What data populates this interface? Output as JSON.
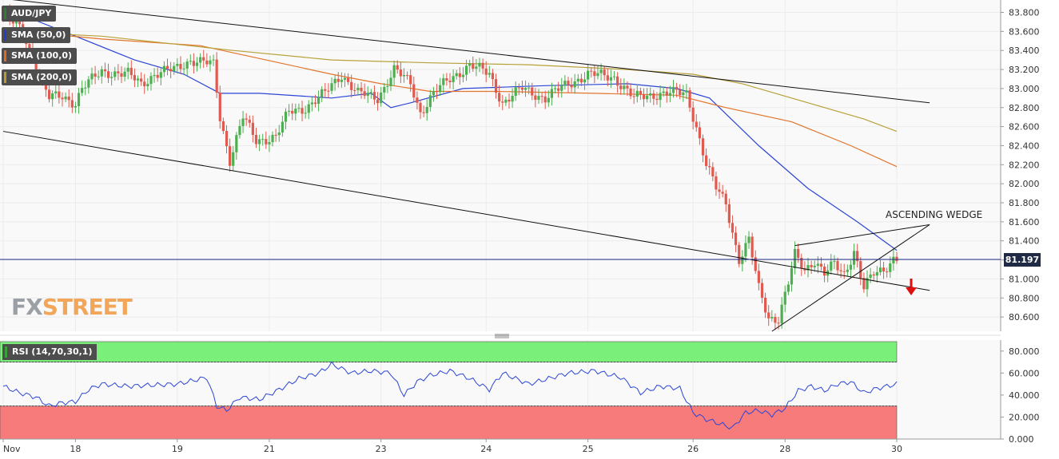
{
  "chart_data": {
    "type": "candlestick",
    "symbol": "AUD/JPY",
    "price_axis": {
      "min": 80.45,
      "max": 83.93,
      "ticks": [
        "83.800",
        "83.600",
        "83.400",
        "83.200",
        "83.000",
        "82.800",
        "82.600",
        "82.400",
        "82.200",
        "82.000",
        "81.800",
        "81.600",
        "81.400",
        "81.200",
        "81.000",
        "80.800",
        "80.600"
      ]
    },
    "current_price": "81.197",
    "x_ticks": [
      {
        "label": "Nov",
        "i": 0
      },
      {
        "label": "18",
        "i": 22
      },
      {
        "label": "19",
        "i": 53
      },
      {
        "label": "21",
        "i": 81
      },
      {
        "label": "23",
        "i": 115
      },
      {
        "label": "24",
        "i": 147
      },
      {
        "label": "25",
        "i": 178
      },
      {
        "label": "26",
        "i": 210
      },
      {
        "label": "28",
        "i": 238
      },
      {
        "label": "30",
        "i": 272
      }
    ],
    "legend": [
      {
        "label": "AUD/JPY",
        "color": "#2e7d32"
      },
      {
        "label": "SMA (50,0)",
        "color": "#1e3fcf"
      },
      {
        "label": "SMA (100,0)",
        "color": "#e06c1f"
      },
      {
        "label": "SMA (200,0)",
        "color": "#b59a2e"
      }
    ],
    "annotation": "ASCENDING WEDGE",
    "watermark": {
      "fx": "FX",
      "street": "STREET"
    },
    "colors": {
      "up": "#4caf50",
      "down": "#e05a4f",
      "sma50": "#2b45d6",
      "sma100": "#e2742b",
      "sma200": "#b8a13a",
      "trend": "#111111",
      "arrow": "#e01010"
    },
    "anchors": [
      {
        "i": 0,
        "p": 83.78
      },
      {
        "i": 6,
        "p": 83.6
      },
      {
        "i": 12,
        "p": 83.05
      },
      {
        "i": 14,
        "p": 82.9
      },
      {
        "i": 18,
        "p": 82.92
      },
      {
        "i": 22,
        "p": 82.85
      },
      {
        "i": 24,
        "p": 83.0
      },
      {
        "i": 30,
        "p": 83.18
      },
      {
        "i": 38,
        "p": 83.15
      },
      {
        "i": 42,
        "p": 83.05
      },
      {
        "i": 46,
        "p": 83.15
      },
      {
        "i": 52,
        "p": 83.2
      },
      {
        "i": 57,
        "p": 83.3
      },
      {
        "i": 64,
        "p": 83.25
      },
      {
        "i": 66,
        "p": 82.7
      },
      {
        "i": 69,
        "p": 82.25
      },
      {
        "i": 73,
        "p": 82.7
      },
      {
        "i": 77,
        "p": 82.45
      },
      {
        "i": 83,
        "p": 82.5
      },
      {
        "i": 87,
        "p": 82.75
      },
      {
        "i": 92,
        "p": 82.8
      },
      {
        "i": 98,
        "p": 82.95
      },
      {
        "i": 103,
        "p": 83.15
      },
      {
        "i": 108,
        "p": 82.95
      },
      {
        "i": 114,
        "p": 82.9
      },
      {
        "i": 119,
        "p": 83.2
      },
      {
        "i": 124,
        "p": 83.05
      },
      {
        "i": 127,
        "p": 82.75
      },
      {
        "i": 131,
        "p": 82.95
      },
      {
        "i": 136,
        "p": 83.1
      },
      {
        "i": 142,
        "p": 83.25
      },
      {
        "i": 148,
        "p": 83.15
      },
      {
        "i": 152,
        "p": 82.85
      },
      {
        "i": 158,
        "p": 83.0
      },
      {
        "i": 165,
        "p": 82.9
      },
      {
        "i": 172,
        "p": 83.05
      },
      {
        "i": 178,
        "p": 83.15
      },
      {
        "i": 186,
        "p": 83.12
      },
      {
        "i": 192,
        "p": 82.9
      },
      {
        "i": 200,
        "p": 82.95
      },
      {
        "i": 208,
        "p": 82.95
      },
      {
        "i": 211,
        "p": 82.6
      },
      {
        "i": 214,
        "p": 82.2
      },
      {
        "i": 217,
        "p": 81.95
      },
      {
        "i": 220,
        "p": 81.8
      },
      {
        "i": 224,
        "p": 81.2
      },
      {
        "i": 227,
        "p": 81.4
      },
      {
        "i": 230,
        "p": 80.9
      },
      {
        "i": 233,
        "p": 80.6
      },
      {
        "i": 236,
        "p": 80.58
      },
      {
        "i": 239,
        "p": 80.95
      },
      {
        "i": 241,
        "p": 81.25
      },
      {
        "i": 244,
        "p": 81.1
      },
      {
        "i": 247,
        "p": 81.2
      },
      {
        "i": 250,
        "p": 81.05
      },
      {
        "i": 253,
        "p": 81.15
      },
      {
        "i": 256,
        "p": 81.05
      },
      {
        "i": 259,
        "p": 81.3
      },
      {
        "i": 262,
        "p": 80.9
      },
      {
        "i": 265,
        "p": 81.05
      },
      {
        "i": 268,
        "p": 81.1
      },
      {
        "i": 271,
        "p": 81.22
      }
    ],
    "sma50": [
      [
        0,
        83.85
      ],
      [
        22,
        83.55
      ],
      [
        40,
        83.3
      ],
      [
        55,
        83.15
      ],
      [
        66,
        82.95
      ],
      [
        78,
        82.95
      ],
      [
        100,
        82.9
      ],
      [
        112,
        82.95
      ],
      [
        118,
        82.8
      ],
      [
        124,
        82.85
      ],
      [
        140,
        83.0
      ],
      [
        165,
        83.03
      ],
      [
        190,
        83.05
      ],
      [
        205,
        83.0
      ],
      [
        215,
        82.9
      ],
      [
        230,
        82.4
      ],
      [
        245,
        81.95
      ],
      [
        260,
        81.6
      ],
      [
        272,
        81.3
      ]
    ],
    "sma100": [
      [
        0,
        83.62
      ],
      [
        30,
        83.52
      ],
      [
        60,
        83.45
      ],
      [
        80,
        83.3
      ],
      [
        100,
        83.15
      ],
      [
        115,
        83.05
      ],
      [
        130,
        82.97
      ],
      [
        150,
        82.97
      ],
      [
        180,
        82.95
      ],
      [
        205,
        82.93
      ],
      [
        220,
        82.8
      ],
      [
        240,
        82.65
      ],
      [
        258,
        82.4
      ],
      [
        272,
        82.18
      ]
    ],
    "sma200": [
      [
        0,
        83.6
      ],
      [
        30,
        83.55
      ],
      [
        70,
        83.4
      ],
      [
        100,
        83.3
      ],
      [
        130,
        83.27
      ],
      [
        160,
        83.25
      ],
      [
        190,
        83.2
      ],
      [
        210,
        83.15
      ],
      [
        225,
        83.05
      ],
      [
        245,
        82.85
      ],
      [
        262,
        82.68
      ],
      [
        272,
        82.55
      ]
    ],
    "trendlines": [
      {
        "from": [
          -40,
          84.1
        ],
        "to": [
          282,
          82.85
        ]
      },
      {
        "from": [
          0,
          82.55
        ],
        "to": [
          282,
          80.88
        ]
      },
      {
        "from": [
          234,
          80.45
        ],
        "to": [
          282,
          81.57
        ]
      },
      {
        "from": [
          241,
          81.35
        ],
        "to": [
          282,
          81.57
        ]
      }
    ],
    "rsi": {
      "label": "RSI (14,70,30,1)",
      "min": 0,
      "max": 90,
      "overbought": 70,
      "oversold": 30,
      "ticks": [
        "80.000",
        "60.000",
        "40.000",
        "20.000",
        "0.000"
      ],
      "anchors": [
        {
          "i": 0,
          "v": 48
        },
        {
          "i": 5,
          "v": 42
        },
        {
          "i": 10,
          "v": 38
        },
        {
          "i": 14,
          "v": 30
        },
        {
          "i": 18,
          "v": 33
        },
        {
          "i": 22,
          "v": 34
        },
        {
          "i": 26,
          "v": 45
        },
        {
          "i": 30,
          "v": 50
        },
        {
          "i": 38,
          "v": 48
        },
        {
          "i": 45,
          "v": 49
        },
        {
          "i": 53,
          "v": 50
        },
        {
          "i": 62,
          "v": 56
        },
        {
          "i": 65,
          "v": 30
        },
        {
          "i": 68,
          "v": 26
        },
        {
          "i": 72,
          "v": 38
        },
        {
          "i": 78,
          "v": 36
        },
        {
          "i": 84,
          "v": 45
        },
        {
          "i": 90,
          "v": 55
        },
        {
          "i": 96,
          "v": 60
        },
        {
          "i": 100,
          "v": 68
        },
        {
          "i": 106,
          "v": 60
        },
        {
          "i": 112,
          "v": 62
        },
        {
          "i": 118,
          "v": 60
        },
        {
          "i": 122,
          "v": 40
        },
        {
          "i": 126,
          "v": 52
        },
        {
          "i": 130,
          "v": 58
        },
        {
          "i": 136,
          "v": 62
        },
        {
          "i": 142,
          "v": 55
        },
        {
          "i": 148,
          "v": 45
        },
        {
          "i": 152,
          "v": 60
        },
        {
          "i": 160,
          "v": 50
        },
        {
          "i": 166,
          "v": 55
        },
        {
          "i": 172,
          "v": 60
        },
        {
          "i": 180,
          "v": 62
        },
        {
          "i": 188,
          "v": 56
        },
        {
          "i": 194,
          "v": 42
        },
        {
          "i": 200,
          "v": 48
        },
        {
          "i": 206,
          "v": 46
        },
        {
          "i": 210,
          "v": 24
        },
        {
          "i": 214,
          "v": 18
        },
        {
          "i": 218,
          "v": 14
        },
        {
          "i": 222,
          "v": 10
        },
        {
          "i": 226,
          "v": 24
        },
        {
          "i": 230,
          "v": 26
        },
        {
          "i": 234,
          "v": 22
        },
        {
          "i": 238,
          "v": 28
        },
        {
          "i": 242,
          "v": 44
        },
        {
          "i": 246,
          "v": 48
        },
        {
          "i": 250,
          "v": 44
        },
        {
          "i": 254,
          "v": 50
        },
        {
          "i": 258,
          "v": 52
        },
        {
          "i": 262,
          "v": 42
        },
        {
          "i": 266,
          "v": 46
        },
        {
          "i": 272,
          "v": 50
        }
      ]
    }
  }
}
